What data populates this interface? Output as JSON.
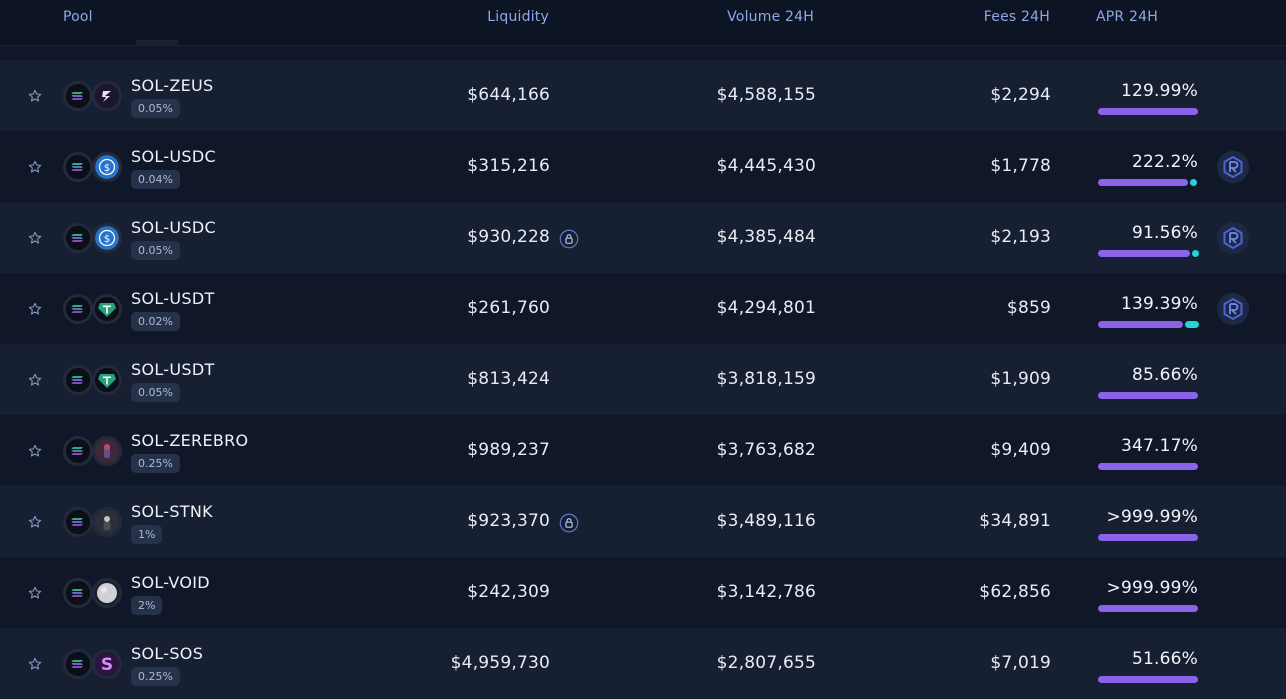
{
  "header": {
    "pool": "Pool",
    "liquidity": "Liquidity",
    "volume": "Volume 24H",
    "fees": "Fees 24H",
    "apr": "APR 24H"
  },
  "colors": {
    "apr_bar_purple": "#8a63e8",
    "apr_bar_cyan": "#22d3d8",
    "header_text": "#8fa7e6",
    "row_alt": "#172033",
    "row_base": "#0f1729"
  },
  "pools": [
    {
      "name": "SOL-ZEUS",
      "fee": "0.05%",
      "liquidity": "$644,166",
      "locked": false,
      "volume": "$4,588,155",
      "fees": "$2,294",
      "apr": "129.99%",
      "apr_parts": [
        1.0,
        0
      ],
      "reward_icon": false,
      "token2_icon": "zeus-icon",
      "token2_color": "#1a1530"
    },
    {
      "name": "SOL-USDC",
      "fee": "0.04%",
      "liquidity": "$315,216",
      "locked": false,
      "volume": "$4,445,430",
      "fees": "$1,778",
      "apr": "222.2%",
      "apr_parts": [
        0.9,
        0.05
      ],
      "reward_icon": true,
      "token2_icon": "usdc-icon",
      "token2_color": "#2775ca"
    },
    {
      "name": "SOL-USDC",
      "fee": "0.05%",
      "liquidity": "$930,228",
      "locked": true,
      "volume": "$4,385,484",
      "fees": "$2,193",
      "apr": "91.56%",
      "apr_parts": [
        0.92,
        0.04
      ],
      "reward_icon": true,
      "token2_icon": "usdc-icon",
      "token2_color": "#2775ca"
    },
    {
      "name": "SOL-USDT",
      "fee": "0.02%",
      "liquidity": "$261,760",
      "locked": false,
      "volume": "$4,294,801",
      "fees": "$859",
      "apr": "139.39%",
      "apr_parts": [
        0.85,
        0.14
      ],
      "reward_icon": true,
      "token2_icon": "usdt-icon",
      "token2_color": "#26a17b"
    },
    {
      "name": "SOL-USDT",
      "fee": "0.05%",
      "liquidity": "$813,424",
      "locked": false,
      "volume": "$3,818,159",
      "fees": "$1,909",
      "apr": "85.66%",
      "apr_parts": [
        1.0,
        0
      ],
      "reward_icon": false,
      "token2_icon": "usdt-icon",
      "token2_color": "#26a17b"
    },
    {
      "name": "SOL-ZEREBRO",
      "fee": "0.25%",
      "liquidity": "$989,237",
      "locked": false,
      "volume": "$3,763,682",
      "fees": "$9,409",
      "apr": "347.17%",
      "apr_parts": [
        1.0,
        0
      ],
      "reward_icon": false,
      "token2_icon": "zerebro-icon",
      "token2_color": "#3a2a3c"
    },
    {
      "name": "SOL-STNK",
      "fee": "1%",
      "liquidity": "$923,370",
      "locked": true,
      "volume": "$3,489,116",
      "fees": "$34,891",
      "apr": ">999.99%",
      "apr_parts": [
        1.0,
        0
      ],
      "reward_icon": false,
      "token2_icon": "stnk-icon",
      "token2_color": "#2a2f3a"
    },
    {
      "name": "SOL-VOID",
      "fee": "2%",
      "liquidity": "$242,309",
      "locked": false,
      "volume": "$3,142,786",
      "fees": "$62,856",
      "apr": ">999.99%",
      "apr_parts": [
        1.0,
        0
      ],
      "reward_icon": false,
      "token2_icon": "void-icon",
      "token2_color": "#cfd1d6"
    },
    {
      "name": "SOL-SOS",
      "fee": "0.25%",
      "liquidity": "$4,959,730",
      "locked": false,
      "volume": "$2,807,655",
      "fees": "$7,019",
      "apr": "51.66%",
      "apr_parts": [
        1.0,
        0
      ],
      "reward_icon": false,
      "token2_icon": "sos-icon",
      "token2_color": "#2b1440"
    }
  ]
}
